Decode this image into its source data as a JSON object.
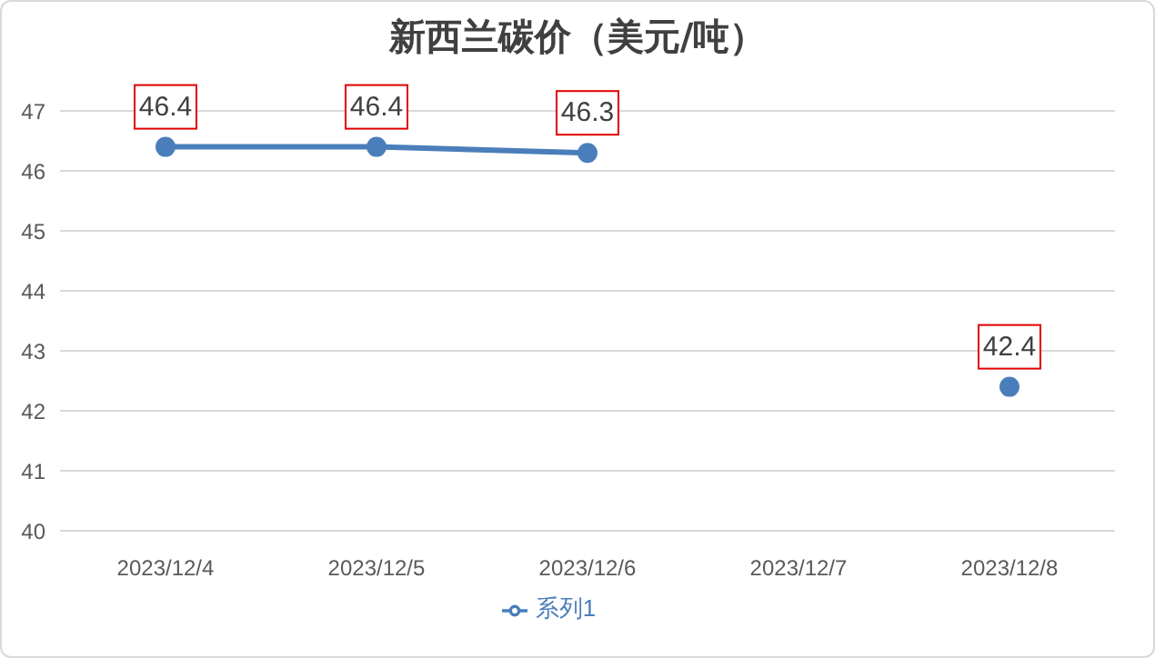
{
  "chart_data": {
    "type": "line",
    "title": "新西兰碳价（美元/吨）",
    "categories": [
      "2023/12/4",
      "2023/12/5",
      "2023/12/6",
      "2023/12/7",
      "2023/12/8"
    ],
    "series": [
      {
        "name": "系列1",
        "color": "#4a7ebb",
        "values": [
          46.4,
          46.4,
          46.3,
          null,
          42.4
        ]
      }
    ],
    "ylim": [
      40,
      47
    ],
    "yticks": [
      40,
      41,
      42,
      43,
      44,
      45,
      46,
      47
    ],
    "grid": "y",
    "legend": "bottom",
    "marker": "circle",
    "line_style": "solid",
    "data_labels": true
  }
}
